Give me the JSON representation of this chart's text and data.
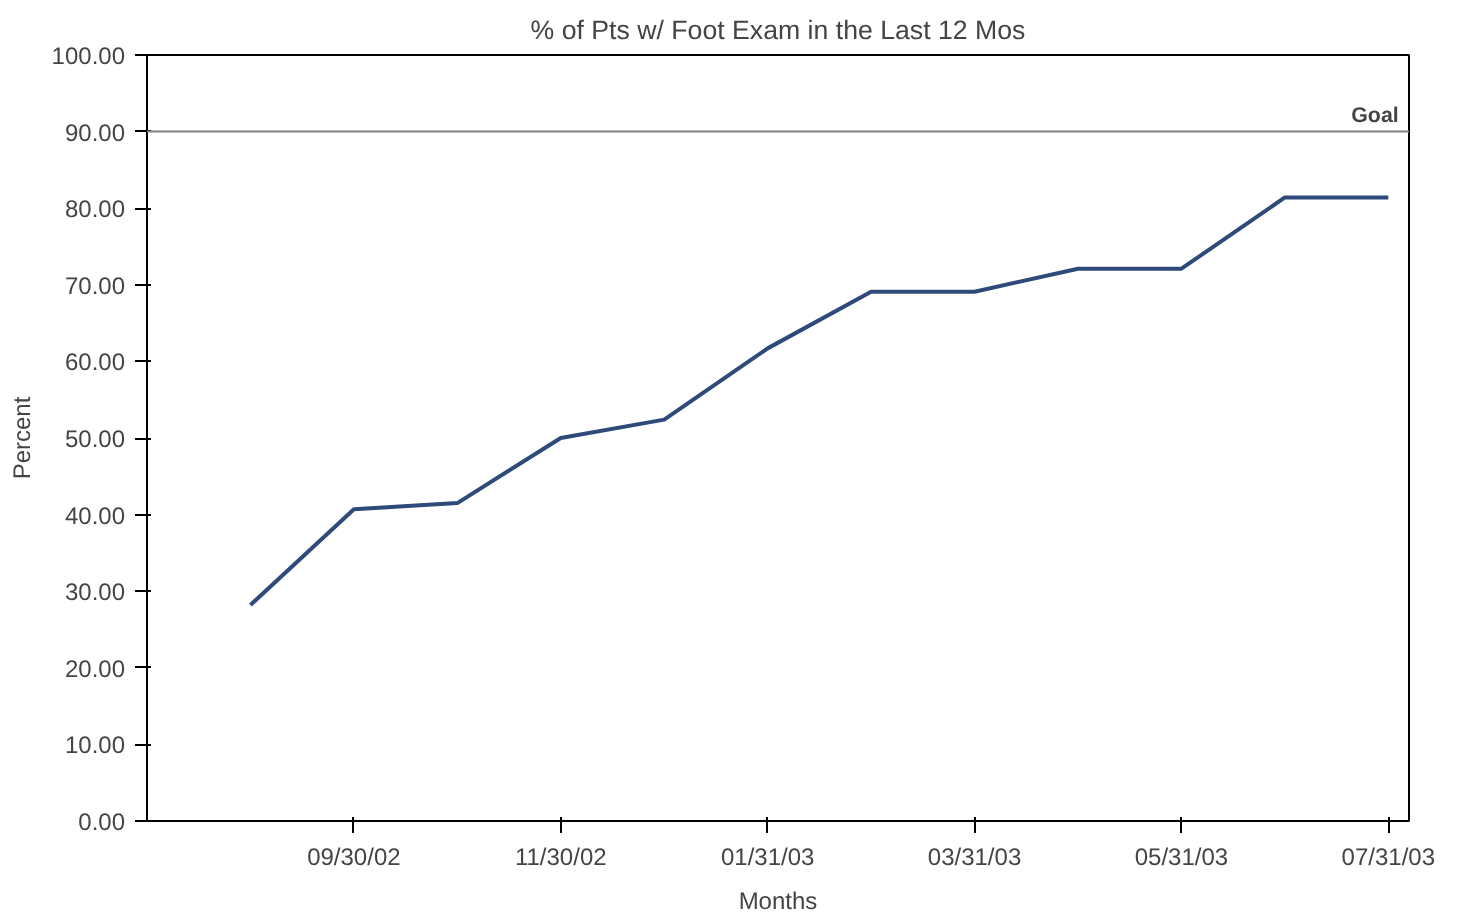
{
  "chart_data": {
    "type": "line",
    "title": "% of Pts w/ Foot Exam in the Last 12 Mos",
    "xlabel": "Months",
    "ylabel": "Percent",
    "categories": [
      null,
      "09/30/02",
      null,
      "11/30/02",
      null,
      "01/31/03",
      null,
      "03/31/03",
      null,
      "05/31/03",
      null,
      "07/31/03"
    ],
    "series": [
      {
        "color": "#2e4a7a",
        "values": [
          28.2,
          40.7,
          41.5,
          50.0,
          52.4,
          61.7,
          69.1,
          69.1,
          72.1,
          72.1,
          81.4,
          81.4
        ]
      }
    ],
    "ylim": [
      0,
      100
    ],
    "yticks": [
      {
        "value": 0,
        "label": "0.00"
      },
      {
        "value": 10,
        "label": "10.00"
      },
      {
        "value": 20,
        "label": "20.00"
      },
      {
        "value": 30,
        "label": "30.00"
      },
      {
        "value": 40,
        "label": "40.00"
      },
      {
        "value": 50,
        "label": "50.00"
      },
      {
        "value": 60,
        "label": "60.00"
      },
      {
        "value": 70,
        "label": "70.00"
      },
      {
        "value": 80,
        "label": "80.00"
      },
      {
        "value": 90,
        "label": "90.00"
      },
      {
        "value": 100,
        "label": "100.00"
      }
    ],
    "ref_lines": [
      {
        "axis": "y",
        "value": 90,
        "label": "Goal",
        "color": "#808080"
      }
    ],
    "grid": false,
    "marker": "none",
    "line_style": "solid"
  }
}
